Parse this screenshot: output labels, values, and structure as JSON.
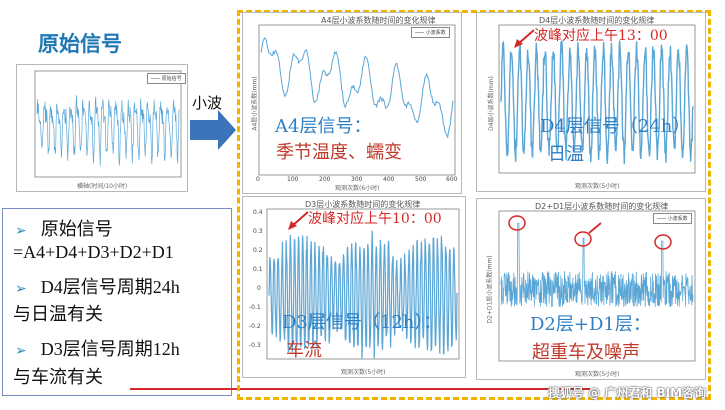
{
  "original": {
    "title": "原始信号",
    "legend": "─── 原始信号",
    "x_axis_label": "横轴(时间/10小时)"
  },
  "arrow": {
    "label": "小波"
  },
  "info_box": {
    "lines": [
      {
        "bullet": "➢",
        "text": "原始信号"
      },
      {
        "bullet": "",
        "text": "=A4+D4+D3+D2+D1"
      },
      {
        "bullet": "➢",
        "text": "D4层信号周期24h"
      },
      {
        "bullet": "",
        "text": "与日温有关"
      },
      {
        "bullet": "➢",
        "text": "D3层信号周期12h"
      },
      {
        "bullet": "",
        "text": "与车流有关"
      }
    ]
  },
  "panels": {
    "a4": {
      "plot_title": "A4层小波系数随时间的变化规律",
      "legend": "─── 小波系数",
      "y_label": "A4层小波系数(mm)",
      "x_label": "观测次数(6小时)",
      "overlay_blue": "A4层信号：",
      "overlay_red": "季节温度、蠕变",
      "x_ticks": [
        "0",
        "100",
        "200",
        "300",
        "400",
        "500",
        "600"
      ]
    },
    "d4": {
      "plot_title": "D4层小波系数随时间的变化规律",
      "y_label": "D4层小波系数(mm)",
      "x_label": "观测次数(5小时)",
      "annotation": "波峰对应上午13：00",
      "overlay_blue": "D4层信号（24h）",
      "overlay_blue2": "日温",
      "x_ticks": [
        "0",
        "100",
        "200",
        "300",
        "400",
        "500"
      ]
    },
    "d3": {
      "plot_title": "D3层小波系数随时间的变化规律",
      "y_label": "D3层小波系数(mm)",
      "x_label": "观测次数(5小时)",
      "annotation": "波峰对应上午10：00",
      "overlay_blue": "D3层信号（12h）：",
      "overlay_red": "车流",
      "y_ticks": [
        "0.4",
        "0.3",
        "0.2",
        "0.1",
        "0",
        "-0.1",
        "-0.2",
        "-0.3"
      ],
      "x_ticks": [
        "0",
        "100",
        "200",
        "300",
        "400",
        "500"
      ]
    },
    "d2d1": {
      "plot_title": "D2+D1层小波系数随时间的变化规律",
      "legend": "─── 小波系数",
      "y_label": "D2+D1层小波系数(mm)",
      "x_label": "观测次数(5小时)",
      "overlay_blue": "D2层+D1层：",
      "overlay_red": "超重车及噪声",
      "x_ticks": [
        "0",
        "100",
        "200",
        "300",
        "400",
        "500"
      ]
    }
  },
  "watermark": {
    "text": "搜狐号 @ 广州君和 BIM咨询"
  },
  "colors": {
    "signal": "#5aa6d6",
    "dashed_frame": "#f0b400",
    "annotation": "#d62828",
    "overlay_blue": "#2f7fc4",
    "overlay_red": "#c0392b",
    "arrow": "#3b74b8"
  }
}
